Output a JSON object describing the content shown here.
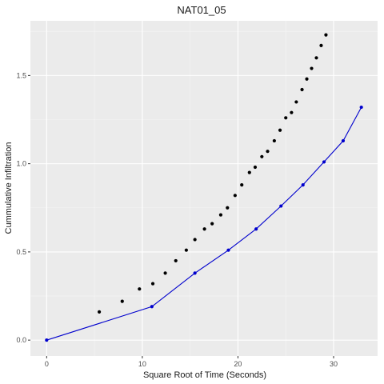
{
  "chart_data": {
    "type": "scatter",
    "title": "NAT01_05",
    "xlabel": "Square Root of Time (Seconds)",
    "ylabel": "Cummulative Infiltration",
    "xlim": [
      -1.7,
      34.6
    ],
    "ylim": [
      -0.09,
      1.81
    ],
    "x_ticks": [
      0,
      10,
      20,
      30
    ],
    "x_tick_labels": [
      "0",
      "10",
      "20",
      "30"
    ],
    "y_ticks": [
      0.0,
      0.5,
      1.0,
      1.5
    ],
    "y_tick_labels": [
      "0.0",
      "0.5",
      "1.0",
      "1.5"
    ],
    "grid": true,
    "legend": "none",
    "colors": {
      "panel_background": "#ebebeb",
      "major_grid": "#ffffff",
      "minor_grid": "#f5f5f5",
      "observed_points": "#000000",
      "fitted_line": "#0000cd"
    },
    "series": [
      {
        "mode": "points",
        "x": [
          5.5,
          7.9,
          9.7,
          11.1,
          12.4,
          13.5,
          14.6,
          15.5,
          16.5,
          17.3,
          18.2,
          18.9,
          19.7,
          20.4,
          21.2,
          21.8,
          22.5,
          23.1,
          23.8,
          24.4,
          25.0,
          25.6,
          26.1,
          26.7,
          27.2,
          27.7,
          28.2,
          28.7,
          29.2
        ],
        "y": [
          0.16,
          0.22,
          0.29,
          0.32,
          0.38,
          0.45,
          0.51,
          0.57,
          0.63,
          0.66,
          0.71,
          0.75,
          0.82,
          0.88,
          0.95,
          0.98,
          1.04,
          1.07,
          1.13,
          1.19,
          1.26,
          1.29,
          1.35,
          1.42,
          1.48,
          1.54,
          1.6,
          1.67,
          1.73
        ]
      },
      {
        "mode": "line+points",
        "x": [
          0,
          11.0,
          15.5,
          19.0,
          21.9,
          24.5,
          26.8,
          29.0,
          31.0,
          32.9
        ],
        "y": [
          0.0,
          0.19,
          0.38,
          0.51,
          0.63,
          0.76,
          0.88,
          1.01,
          1.13,
          1.32
        ]
      }
    ]
  }
}
